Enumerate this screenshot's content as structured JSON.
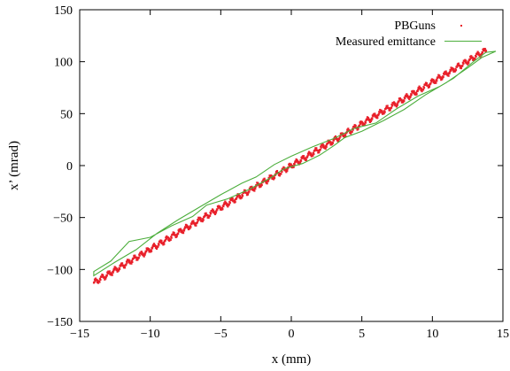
{
  "chart_data": {
    "type": "scatter",
    "title": "",
    "xlabel": "x (mm)",
    "ylabel": "x’ (mrad)",
    "xlim": [
      -15,
      15
    ],
    "ylim": [
      -150,
      150
    ],
    "xticks": [
      -15,
      -10,
      -5,
      0,
      5,
      10,
      15
    ],
    "yticks": [
      -150,
      -100,
      -50,
      0,
      50,
      100,
      150
    ],
    "xtick_labels": [
      "−15",
      "−10",
      "−5",
      "0",
      "5",
      "10",
      "15"
    ],
    "ytick_labels": [
      "−150",
      "−100",
      "−50",
      "0",
      "50",
      "100",
      "150"
    ],
    "grid": false,
    "legend_position": "top-right",
    "series": [
      {
        "name": "PBGuns",
        "kind": "points",
        "color": "#e8202a",
        "slope": 8.05,
        "x_range": [
          -14.0,
          13.8
        ],
        "spread": 2.2
      },
      {
        "name": "Measured emittance",
        "kind": "closed-line",
        "color": "#4cae3c",
        "points": [
          [
            -14.0,
            -102
          ],
          [
            -12.8,
            -92
          ],
          [
            -11.5,
            -73
          ],
          [
            -10.0,
            -69
          ],
          [
            -8.5,
            -58
          ],
          [
            -7.0,
            -49
          ],
          [
            -6.0,
            -38
          ],
          [
            -4.5,
            -32
          ],
          [
            -3.0,
            -23
          ],
          [
            -1.5,
            -12
          ],
          [
            -0.5,
            -3
          ],
          [
            0.8,
            2
          ],
          [
            2.0,
            10
          ],
          [
            3.0,
            19
          ],
          [
            3.8,
            27
          ],
          [
            5.0,
            33
          ],
          [
            6.5,
            43
          ],
          [
            8.0,
            54
          ],
          [
            9.5,
            68
          ],
          [
            11.0,
            80
          ],
          [
            12.5,
            94
          ],
          [
            13.5,
            104
          ],
          [
            14.5,
            110
          ],
          [
            13.8,
            109
          ],
          [
            13.0,
            101
          ],
          [
            11.5,
            84
          ],
          [
            10.5,
            76
          ],
          [
            9.0,
            67
          ],
          [
            7.5,
            55
          ],
          [
            6.0,
            41
          ],
          [
            4.5,
            36
          ],
          [
            3.0,
            26
          ],
          [
            1.5,
            18
          ],
          [
            0.0,
            9
          ],
          [
            -1.2,
            1
          ],
          [
            -2.5,
            -11
          ],
          [
            -3.5,
            -17
          ],
          [
            -5.0,
            -28
          ],
          [
            -6.5,
            -40
          ],
          [
            -8.0,
            -52
          ],
          [
            -9.5,
            -65
          ],
          [
            -11.0,
            -81
          ],
          [
            -12.5,
            -93
          ],
          [
            -14.0,
            -106
          ]
        ]
      }
    ]
  }
}
